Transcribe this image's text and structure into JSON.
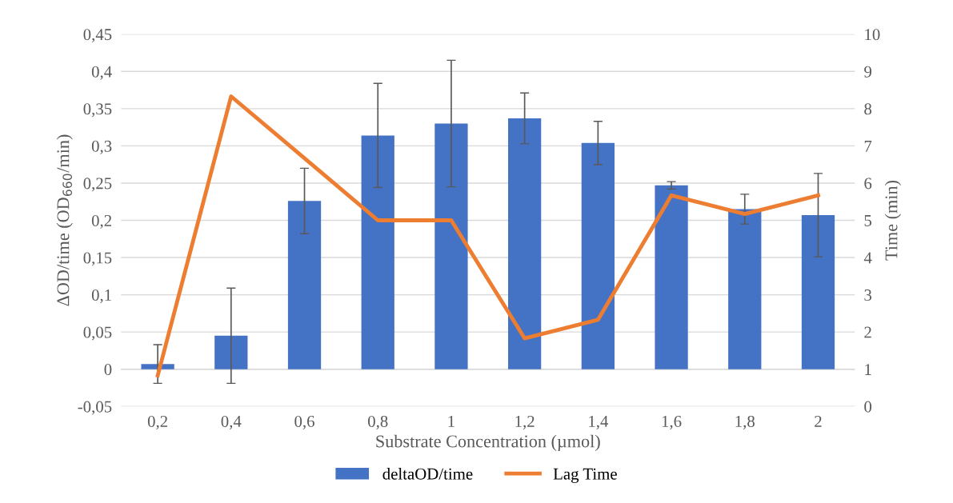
{
  "chart_data": {
    "type": "bar",
    "xlabel": "Substrate Concentration (µmol)",
    "ylabel": "ΔOD/time (OD$_{660}$/min)",
    "y2label": "Time (min)",
    "categories": [
      "0,2",
      "0,4",
      "0,6",
      "0,8",
      "1",
      "1,2",
      "1,4",
      "1,6",
      "1,8",
      "2"
    ],
    "series": [
      {
        "name": "deltaOD/time",
        "color": "#4472c4",
        "values": [
          0.007,
          0.045,
          0.226,
          0.314,
          0.33,
          0.337,
          0.304,
          0.247,
          0.215,
          0.207
        ],
        "errors": [
          0.026,
          0.064,
          0.044,
          0.07,
          0.085,
          0.034,
          0.029,
          0.005,
          0.02,
          0.056
        ]
      },
      {
        "name": "Lag Time",
        "type": "line",
        "axis": "y2",
        "color": "#ed7d31",
        "marker": "none",
        "values": [
          0.83,
          8.33,
          6.67,
          5,
          5,
          1.83,
          2.33,
          5.67,
          5.17,
          5.67
        ]
      }
    ],
    "ylim": [
      -0.05,
      0.45
    ],
    "yticks": [
      {
        "value": -0.05,
        "label": "-0,05"
      },
      {
        "value": 0,
        "label": "0"
      },
      {
        "value": 0.05,
        "label": "0,05"
      },
      {
        "value": 0.1,
        "label": "0,1"
      },
      {
        "value": 0.15,
        "label": "0,15"
      },
      {
        "value": 0.2,
        "label": "0,2"
      },
      {
        "value": 0.25,
        "label": "0,25"
      },
      {
        "value": 0.3,
        "label": "0,3"
      },
      {
        "value": 0.35,
        "label": "0,35"
      },
      {
        "value": 0.4,
        "label": "0,4"
      },
      {
        "value": 0.45,
        "label": "0,45"
      }
    ],
    "y2lim": [
      0,
      10
    ],
    "y2ticks": [
      0,
      1,
      2,
      3,
      4,
      5,
      6,
      7,
      8,
      9,
      10
    ],
    "grid": "y",
    "legend": "bottom"
  }
}
